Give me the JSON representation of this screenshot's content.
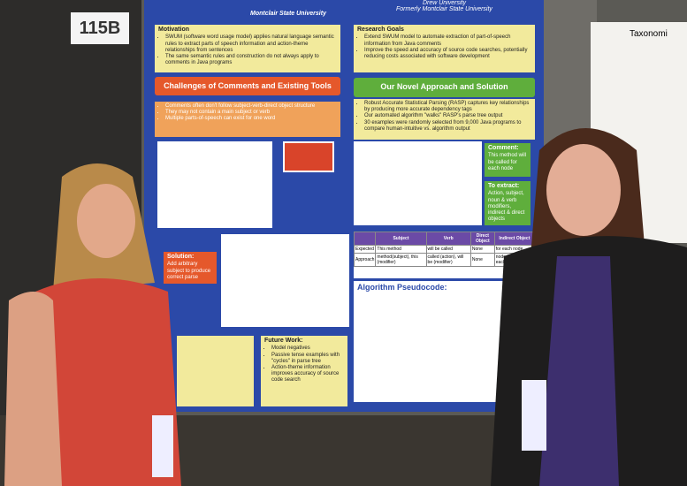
{
  "sign": "115B",
  "poster": {
    "header_left": "Montclair State University",
    "header_right": [
      "Drew University",
      "Formerly Montclair State University"
    ],
    "motivation": {
      "title": "Motivation",
      "bullets": [
        "SWUM (software word usage model) applies natural language semantic rules to extract parts of speech information and action-theme relationships from sentences",
        "The same semantic rules and construction do not always apply to comments in Java programs"
      ]
    },
    "goals": {
      "title": "Research Goals",
      "bullets": [
        "Extend SWUM model to automate extraction of part-of-speech information from Java comments",
        "Improve the speed and accuracy of source code searches, potentially reducing costs associated with software development"
      ]
    },
    "challenges": {
      "title": "Challenges of Comments and Existing Tools",
      "bullets": [
        "Comments often don't follow subject-verb-direct object structure",
        "They may not contain a main subject or verb",
        "Multiple parts-of-speech can exist for one word"
      ]
    },
    "approach": {
      "title": "Our Novel Approach and Solution",
      "bullets": [
        "Robust Accurate Statistical Parsing (RASP) captures key relationships by producing more accurate dependency tags",
        "Our automated algorithm \"walks\" RASP's parse tree output",
        "30 examples were randomly selected from 9,000 Java programs to compare human-intuitive vs. algorithm output"
      ]
    },
    "comment": {
      "title": "Comment:",
      "text": "This method will be called for each node"
    },
    "extract": {
      "title": "To extract:",
      "text": "Action, subject, noun & verb modifiers, indirect & direct objects"
    },
    "solution": {
      "title": "Solution:",
      "text": "Add arbitrary subject to produce correct parse"
    },
    "table": {
      "headers": [
        "Subject",
        "Verb",
        "Direct Object",
        "Indirect Object"
      ],
      "rows": [
        [
          "Expected",
          "This method",
          "will be called",
          "None",
          "for each node"
        ],
        [
          "Approach",
          "method(subject), this (modifier)",
          "called (action), will be (modifier)",
          "None",
          "node (direct), for each (mod)"
        ]
      ]
    },
    "pseudocode": {
      "title": "Algorithm Pseudocode:"
    },
    "future": {
      "title": "Future Work:",
      "bullets": [
        "Model negatives",
        "Passive tense examples with \"cycles\" in parse tree",
        "Action-theme information improves accuracy of source code search"
      ]
    }
  },
  "side_poster": {
    "title": "Taxonomi"
  }
}
